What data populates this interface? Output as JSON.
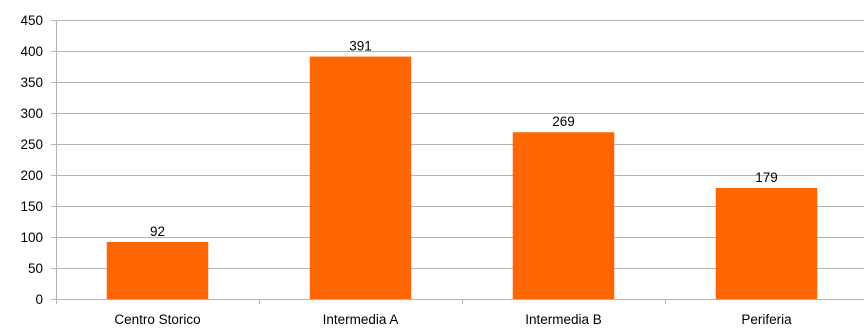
{
  "chart_data": {
    "type": "bar",
    "title": "",
    "xlabel": "",
    "ylabel": "",
    "categories": [
      "Centro Storico",
      "Intermedia A",
      "Intermedia B",
      "Periferia"
    ],
    "values": [
      92,
      391,
      269,
      179
    ],
    "data_labels": [
      "92",
      "391",
      "269",
      "179"
    ],
    "ylim": [
      0,
      450
    ],
    "yticks": [
      0,
      50,
      100,
      150,
      200,
      250,
      300,
      350,
      400,
      450
    ],
    "grid": true,
    "legend": "none",
    "colors": {
      "bar": "#ff6600",
      "grid": "#b3b3b3",
      "axis": "#b3b3b3",
      "text": "#000000"
    }
  }
}
